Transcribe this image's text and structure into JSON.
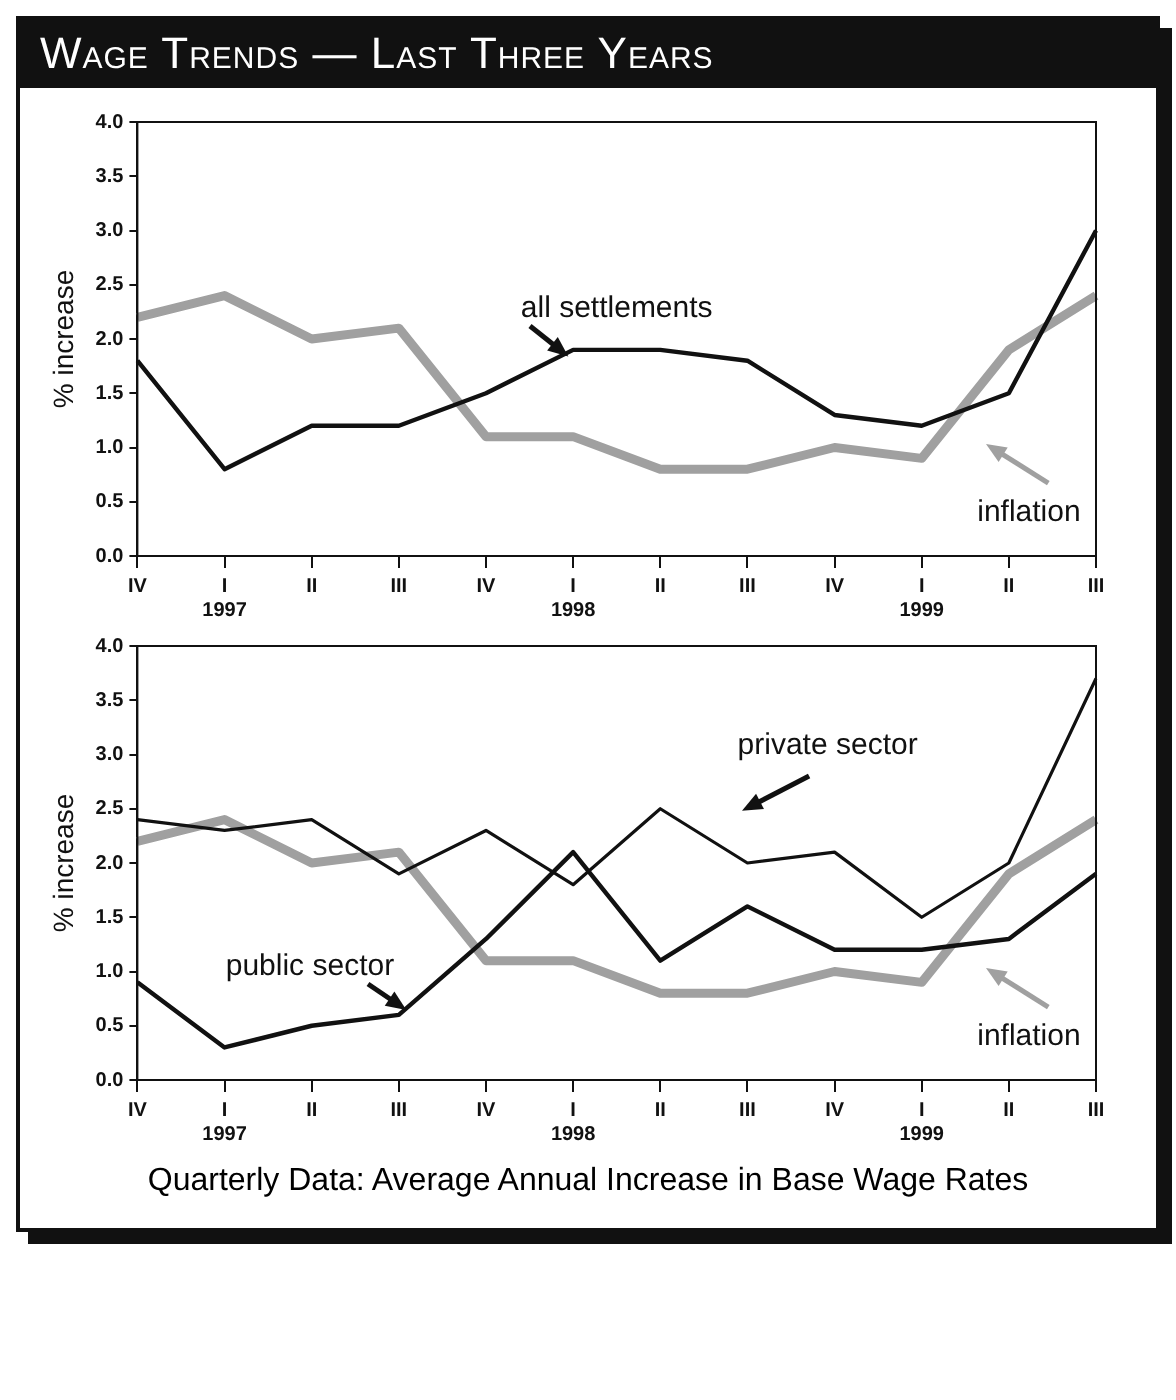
{
  "chart_data": [
    {
      "type": "line",
      "title": "Wage Trends — Last Three Years",
      "ylabel": "% increase",
      "categories": [
        "IV",
        "I\n1997",
        "II",
        "III",
        "IV",
        "I\n1998",
        "II",
        "III",
        "IV",
        "I\n1999",
        "II",
        "III"
      ],
      "series": [
        {
          "name": "all settlements",
          "color": "#111111",
          "values": [
            1.8,
            0.8,
            1.2,
            1.2,
            1.5,
            1.9,
            1.9,
            1.8,
            1.3,
            1.2,
            1.5,
            3.0
          ]
        },
        {
          "name": "inflation",
          "color": "#a0a0a0",
          "values": [
            2.2,
            2.4,
            2.0,
            2.1,
            1.1,
            1.1,
            0.8,
            0.8,
            1.0,
            0.9,
            1.9,
            2.4
          ]
        }
      ],
      "ylim": [
        0,
        4
      ],
      "yticks": [
        {
          "value": 0,
          "label": "0.0"
        },
        {
          "value": 0.5,
          "label": "0.5"
        },
        {
          "value": 1,
          "label": "1.0"
        },
        {
          "value": 1.5,
          "label": "1.5"
        },
        {
          "value": 2,
          "label": "2.0"
        },
        {
          "value": 2.5,
          "label": "2.5"
        },
        {
          "value": 3,
          "label": "3.0"
        },
        {
          "value": 3.5,
          "label": "3.5"
        },
        {
          "value": 4,
          "label": "4.0"
        }
      ],
      "grid": false,
      "legend": "bottom right",
      "marker": "none",
      "line_style": "solid"
    },
    {
      "type": "line",
      "ylabel": "% increase",
      "categories": [
        "IV",
        "I\n1997",
        "II",
        "III",
        "IV",
        "I\n1998",
        "II",
        "III",
        "IV",
        "I\n1999",
        "II",
        "III"
      ],
      "series": [
        {
          "name": "private sector",
          "color": "#111111",
          "values": [
            2.4,
            2.3,
            2.4,
            1.9,
            2.3,
            1.8,
            2.5,
            2.0,
            2.1,
            1.5,
            2.0,
            3.7
          ]
        },
        {
          "name": "public sector",
          "color": "#111111",
          "values": [
            0.9,
            0.3,
            0.5,
            0.6,
            1.3,
            2.1,
            1.1,
            1.6,
            1.2,
            1.2,
            1.3,
            1.9
          ]
        },
        {
          "name": "inflation",
          "color": "#a0a0a0",
          "values": [
            2.2,
            2.4,
            2.0,
            2.1,
            1.1,
            1.1,
            0.8,
            0.8,
            1.0,
            0.9,
            1.9,
            2.4
          ]
        }
      ],
      "ylim": [
        0,
        4
      ],
      "yticks": [
        {
          "value": 0,
          "label": "0.0"
        },
        {
          "value": 0.5,
          "label": "0.5"
        },
        {
          "value": 1,
          "label": "1.0"
        },
        {
          "value": 1.5,
          "label": "1.5"
        },
        {
          "value": 2,
          "label": "2.0"
        },
        {
          "value": 2.5,
          "label": "2.5"
        },
        {
          "value": 3,
          "label": "3.0"
        },
        {
          "value": 3.5,
          "label": "3.5"
        },
        {
          "value": 4,
          "label": "4.0"
        }
      ],
      "grid": false,
      "legend": "bottom right",
      "marker": "none",
      "line_style": "solid",
      "annotations": [
        "Quarterly Data: Average Annual Increase in Base Wage Rates"
      ]
    }
  ]
}
